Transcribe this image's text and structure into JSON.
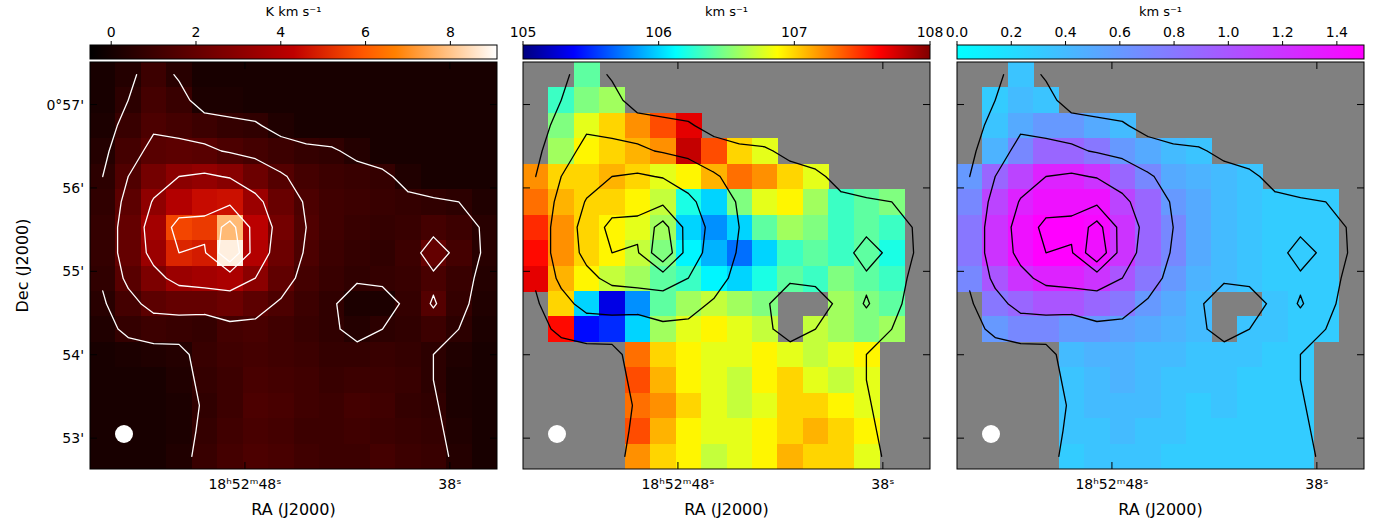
{
  "chart_data": [
    {
      "type": "heatmap",
      "colorbar_label": "K km s⁻¹",
      "x_label": "RA (J2000)",
      "y_label": "Dec (J2000)",
      "color": "gist_heat",
      "xlim": [
        55.56,
        35.7
      ],
      "ylim": [
        52.63,
        57.51
      ],
      "xticks": [
        {
          "value": 48,
          "label": "18ʰ52ᵐ48ˢ"
        },
        {
          "value": 38,
          "label": "38ˢ"
        }
      ],
      "yticks": [
        {
          "value": 57,
          "label": "0°57'"
        },
        {
          "value": 56,
          "label": "56'"
        },
        {
          "value": 55,
          "label": "55'"
        },
        {
          "value": 54,
          "label": "54'"
        },
        {
          "value": 53,
          "label": "53'"
        }
      ],
      "colorbar_range": [
        -0.5,
        9.1
      ],
      "colorbar_ticks": [
        0,
        2,
        4,
        6,
        8
      ],
      "contour_levels": [
        0.6,
        1.5,
        3,
        5,
        7
      ],
      "cells": [
        [
          0.1,
          0.4,
          1.0,
          0.5,
          0.1,
          0.1,
          0.1,
          0.1,
          0.1,
          0.1,
          0.1,
          0.1,
          0.1,
          0.1,
          0.1,
          0.1
        ],
        [
          0.1,
          0.6,
          1.2,
          0.9,
          0.2,
          0.2,
          0.1,
          0.1,
          0.1,
          0.1,
          0.1,
          0.1,
          0.1,
          0.1,
          0.1,
          0.1
        ],
        [
          0.2,
          0.9,
          1.4,
          1.2,
          1.0,
          0.8,
          0.7,
          0.3,
          0.1,
          0.1,
          0.1,
          0.1,
          0.1,
          0.1,
          0.1,
          0.1
        ],
        [
          0.4,
          1.2,
          1.7,
          1.8,
          1.7,
          1.4,
          1.2,
          1.0,
          0.8,
          0.7,
          0.4,
          0.1,
          0.1,
          0.1,
          0.1,
          0.1
        ],
        [
          0.6,
          1.5,
          2.4,
          3.0,
          3.2,
          2.9,
          2.2,
          1.6,
          1.2,
          1.0,
          0.9,
          0.8,
          0.3,
          0.1,
          0.1,
          0.1
        ],
        [
          0.7,
          1.8,
          3.1,
          4.0,
          4.5,
          4.6,
          3.4,
          2.1,
          1.4,
          1.1,
          1.0,
          0.9,
          0.8,
          0.7,
          0.6,
          0.3
        ],
        [
          0.8,
          2.0,
          3.6,
          5.6,
          5.4,
          7.8,
          4.2,
          2.4,
          1.5,
          1.1,
          0.9,
          0.8,
          0.9,
          1.2,
          1.0,
          0.5
        ],
        [
          0.8,
          2.0,
          3.4,
          5.0,
          4.8,
          8.8,
          4.0,
          2.2,
          1.4,
          1.0,
          0.8,
          0.7,
          1.0,
          2.0,
          1.2,
          0.5
        ],
        [
          0.7,
          1.7,
          2.6,
          3.4,
          3.6,
          3.8,
          3.0,
          1.9,
          1.2,
          0.9,
          0.7,
          0.8,
          0.9,
          1.3,
          0.9,
          0.4
        ],
        [
          0.5,
          1.2,
          1.8,
          2.0,
          2.0,
          2.2,
          1.8,
          1.4,
          1.0,
          0.7,
          0.2,
          0.2,
          0.8,
          1.6,
          0.8,
          0.3
        ],
        [
          0.3,
          0.8,
          1.0,
          0.9,
          0.8,
          1.2,
          1.3,
          1.1,
          0.9,
          0.7,
          0.4,
          0.6,
          0.7,
          1.0,
          0.6,
          0.2
        ],
        [
          0.1,
          0.2,
          0.3,
          0.4,
          0.9,
          1.1,
          1.2,
          1.1,
          1.0,
          0.8,
          0.8,
          0.9,
          0.8,
          0.6,
          0.3,
          0.1
        ],
        [
          0.1,
          0.1,
          0.1,
          0.3,
          0.8,
          1.0,
          1.3,
          1.2,
          1.1,
          0.9,
          1.0,
          1.0,
          0.9,
          0.6,
          0.2,
          0.1
        ],
        [
          0.1,
          0.1,
          0.1,
          0.2,
          0.7,
          1.0,
          1.4,
          1.3,
          1.1,
          1.0,
          1.2,
          1.1,
          0.8,
          0.7,
          0.2,
          0.1
        ],
        [
          0.1,
          0.1,
          0.1,
          0.2,
          0.8,
          1.1,
          1.3,
          1.2,
          1.0,
          1.0,
          1.1,
          1.0,
          0.9,
          0.8,
          0.3,
          0.1
        ],
        [
          0.1,
          0.1,
          0.1,
          0.3,
          0.9,
          1.2,
          1.4,
          1.3,
          1.1,
          1.0,
          1.0,
          1.2,
          1.0,
          0.9,
          0.4,
          0.1
        ]
      ]
    },
    {
      "type": "heatmap",
      "colorbar_label": "km s⁻¹",
      "x_label": "RA (J2000)",
      "color": "jet",
      "tick_labels": "x",
      "xlim": [
        55.56,
        35.7
      ],
      "ylim": [
        52.63,
        57.51
      ],
      "xticks": [
        {
          "value": 48,
          "label": "18ʰ52ᵐ48ˢ"
        },
        {
          "value": 38,
          "label": "38ˢ"
        }
      ],
      "yticks": [
        57,
        56,
        55,
        54,
        53
      ],
      "colorbar_range": [
        105,
        108
      ],
      "colorbar_ticks": [
        105,
        106,
        107,
        108
      ],
      "cells": [
        [
          null,
          null,
          106.4,
          null,
          null,
          null,
          null,
          null,
          null,
          null,
          null,
          null,
          null,
          null,
          null,
          null
        ],
        [
          null,
          106.3,
          106.5,
          106.6,
          null,
          null,
          null,
          null,
          null,
          null,
          null,
          null,
          null,
          null,
          null,
          null
        ],
        [
          null,
          106.5,
          106.8,
          107.0,
          107.2,
          107.4,
          107.7,
          null,
          null,
          null,
          null,
          null,
          null,
          null,
          null,
          null
        ],
        [
          null,
          106.6,
          106.9,
          107.0,
          107.1,
          107.2,
          107.8,
          107.4,
          107.0,
          106.8,
          null,
          null,
          null,
          null,
          null,
          null
        ],
        [
          107.2,
          107.0,
          107.0,
          107.1,
          107.0,
          106.8,
          106.9,
          107.1,
          107.3,
          107.2,
          107.0,
          106.8,
          null,
          null,
          null,
          null
        ],
        [
          107.3,
          107.1,
          107.0,
          107.0,
          106.9,
          106.7,
          106.2,
          106.0,
          106.5,
          106.8,
          106.9,
          106.6,
          106.3,
          106.4,
          106.5,
          null
        ],
        [
          107.5,
          107.2,
          107.0,
          106.9,
          106.8,
          106.6,
          106.0,
          105.8,
          106.0,
          106.4,
          106.6,
          106.5,
          106.3,
          106.4,
          106.3,
          null
        ],
        [
          107.6,
          107.2,
          107.0,
          106.9,
          106.7,
          106.5,
          106.1,
          105.9,
          105.7,
          106.0,
          106.3,
          106.4,
          106.3,
          106.4,
          106.2,
          null
        ],
        [
          107.7,
          107.1,
          106.9,
          106.7,
          106.6,
          106.4,
          106.3,
          106.1,
          106.0,
          106.2,
          106.4,
          106.3,
          106.5,
          106.4,
          106.3,
          null
        ],
        [
          null,
          107.0,
          106.0,
          105.3,
          105.8,
          106.4,
          106.6,
          106.7,
          106.6,
          106.5,
          null,
          null,
          106.6,
          106.5,
          106.4,
          null
        ],
        [
          null,
          107.6,
          105.4,
          105.5,
          106.0,
          106.6,
          106.8,
          106.9,
          106.8,
          106.7,
          null,
          106.7,
          106.6,
          106.5,
          106.6,
          null
        ],
        [
          null,
          null,
          null,
          null,
          107.3,
          107.0,
          106.9,
          106.8,
          106.8,
          106.9,
          106.8,
          106.7,
          106.8,
          106.9,
          null,
          null
        ],
        [
          null,
          null,
          null,
          null,
          107.4,
          107.1,
          106.9,
          106.8,
          106.7,
          106.9,
          107.0,
          106.8,
          106.7,
          106.8,
          null,
          null
        ],
        [
          null,
          null,
          null,
          null,
          107.3,
          107.2,
          107.0,
          106.8,
          106.7,
          106.8,
          107.0,
          107.0,
          106.9,
          106.8,
          null,
          null
        ],
        [
          null,
          null,
          null,
          null,
          107.4,
          107.1,
          106.9,
          106.8,
          106.8,
          106.9,
          107.0,
          107.1,
          107.0,
          106.9,
          null,
          null
        ],
        [
          null,
          null,
          null,
          null,
          107.2,
          107.0,
          106.9,
          106.7,
          106.8,
          106.9,
          107.1,
          107.0,
          107.0,
          106.8,
          null,
          null
        ]
      ]
    },
    {
      "type": "heatmap",
      "colorbar_label": "km s⁻¹",
      "x_label": "RA (J2000)",
      "color": "cool",
      "tick_labels": "x",
      "xlim": [
        55.56,
        35.7
      ],
      "ylim": [
        52.63,
        57.51
      ],
      "xticks": [
        {
          "value": 48,
          "label": "18ʰ52ᵐ48ˢ"
        },
        {
          "value": 38,
          "label": "38ˢ"
        }
      ],
      "yticks": [
        57,
        56,
        55,
        54,
        53
      ],
      "colorbar_range": [
        0,
        1.5
      ],
      "colorbar_ticks": [
        {
          "value": 0,
          "label": "0.0"
        },
        0.2,
        0.4,
        0.6,
        0.8,
        {
          "value": 1,
          "label": "1.0"
        },
        1.2,
        1.4
      ],
      "cells": [
        [
          null,
          null,
          0.35,
          null,
          null,
          null,
          null,
          null,
          null,
          null,
          null,
          null,
          null,
          null,
          null,
          null
        ],
        [
          null,
          0.3,
          0.4,
          0.35,
          null,
          null,
          null,
          null,
          null,
          null,
          null,
          null,
          null,
          null,
          null,
          null
        ],
        [
          null,
          0.35,
          0.5,
          0.6,
          0.6,
          0.5,
          0.4,
          null,
          null,
          null,
          null,
          null,
          null,
          null,
          null,
          null
        ],
        [
          null,
          0.45,
          0.7,
          0.9,
          0.9,
          0.8,
          0.6,
          0.5,
          0.4,
          0.35,
          null,
          null,
          null,
          null,
          null,
          null
        ],
        [
          0.6,
          0.9,
          1.1,
          1.3,
          1.3,
          1.2,
          0.9,
          0.7,
          0.5,
          0.45,
          0.4,
          0.35,
          null,
          null,
          null,
          null
        ],
        [
          0.7,
          1.1,
          1.3,
          1.4,
          1.4,
          1.4,
          1.1,
          0.9,
          0.6,
          0.5,
          0.4,
          0.35,
          0.3,
          0.3,
          0.3,
          null
        ],
        [
          0.8,
          1.2,
          1.4,
          1.5,
          1.5,
          1.45,
          1.2,
          0.9,
          0.7,
          0.5,
          0.4,
          0.35,
          0.3,
          0.3,
          0.3,
          null
        ],
        [
          0.8,
          1.2,
          1.4,
          1.5,
          1.5,
          1.4,
          1.2,
          0.9,
          0.7,
          0.5,
          0.4,
          0.35,
          0.3,
          0.3,
          0.3,
          null
        ],
        [
          0.7,
          1.0,
          1.2,
          1.3,
          1.3,
          1.2,
          1.0,
          0.8,
          0.6,
          0.45,
          0.4,
          0.35,
          0.3,
          0.3,
          0.3,
          null
        ],
        [
          null,
          0.8,
          0.9,
          1.0,
          1.0,
          0.9,
          0.8,
          0.6,
          0.5,
          0.4,
          null,
          null,
          0.35,
          0.3,
          0.3,
          null
        ],
        [
          null,
          0.6,
          0.7,
          0.7,
          0.6,
          0.6,
          0.55,
          0.5,
          0.45,
          0.4,
          null,
          0.35,
          0.35,
          0.3,
          0.3,
          null
        ],
        [
          null,
          null,
          null,
          null,
          0.4,
          0.45,
          0.45,
          0.4,
          0.4,
          0.35,
          0.35,
          0.35,
          0.3,
          0.3,
          null,
          null
        ],
        [
          null,
          null,
          null,
          null,
          0.35,
          0.4,
          0.45,
          0.4,
          0.35,
          0.35,
          0.35,
          0.3,
          0.3,
          0.3,
          null,
          null
        ],
        [
          null,
          null,
          null,
          null,
          0.35,
          0.4,
          0.4,
          0.4,
          0.35,
          0.3,
          0.35,
          0.3,
          0.3,
          0.3,
          null,
          null
        ],
        [
          null,
          null,
          null,
          null,
          0.35,
          0.35,
          0.4,
          0.35,
          0.35,
          0.3,
          0.3,
          0.3,
          0.3,
          0.3,
          null,
          null
        ],
        [
          null,
          null,
          null,
          null,
          0.3,
          0.35,
          0.35,
          0.35,
          0.3,
          0.3,
          0.3,
          0.3,
          0.3,
          0.3,
          null,
          null
        ]
      ]
    }
  ]
}
